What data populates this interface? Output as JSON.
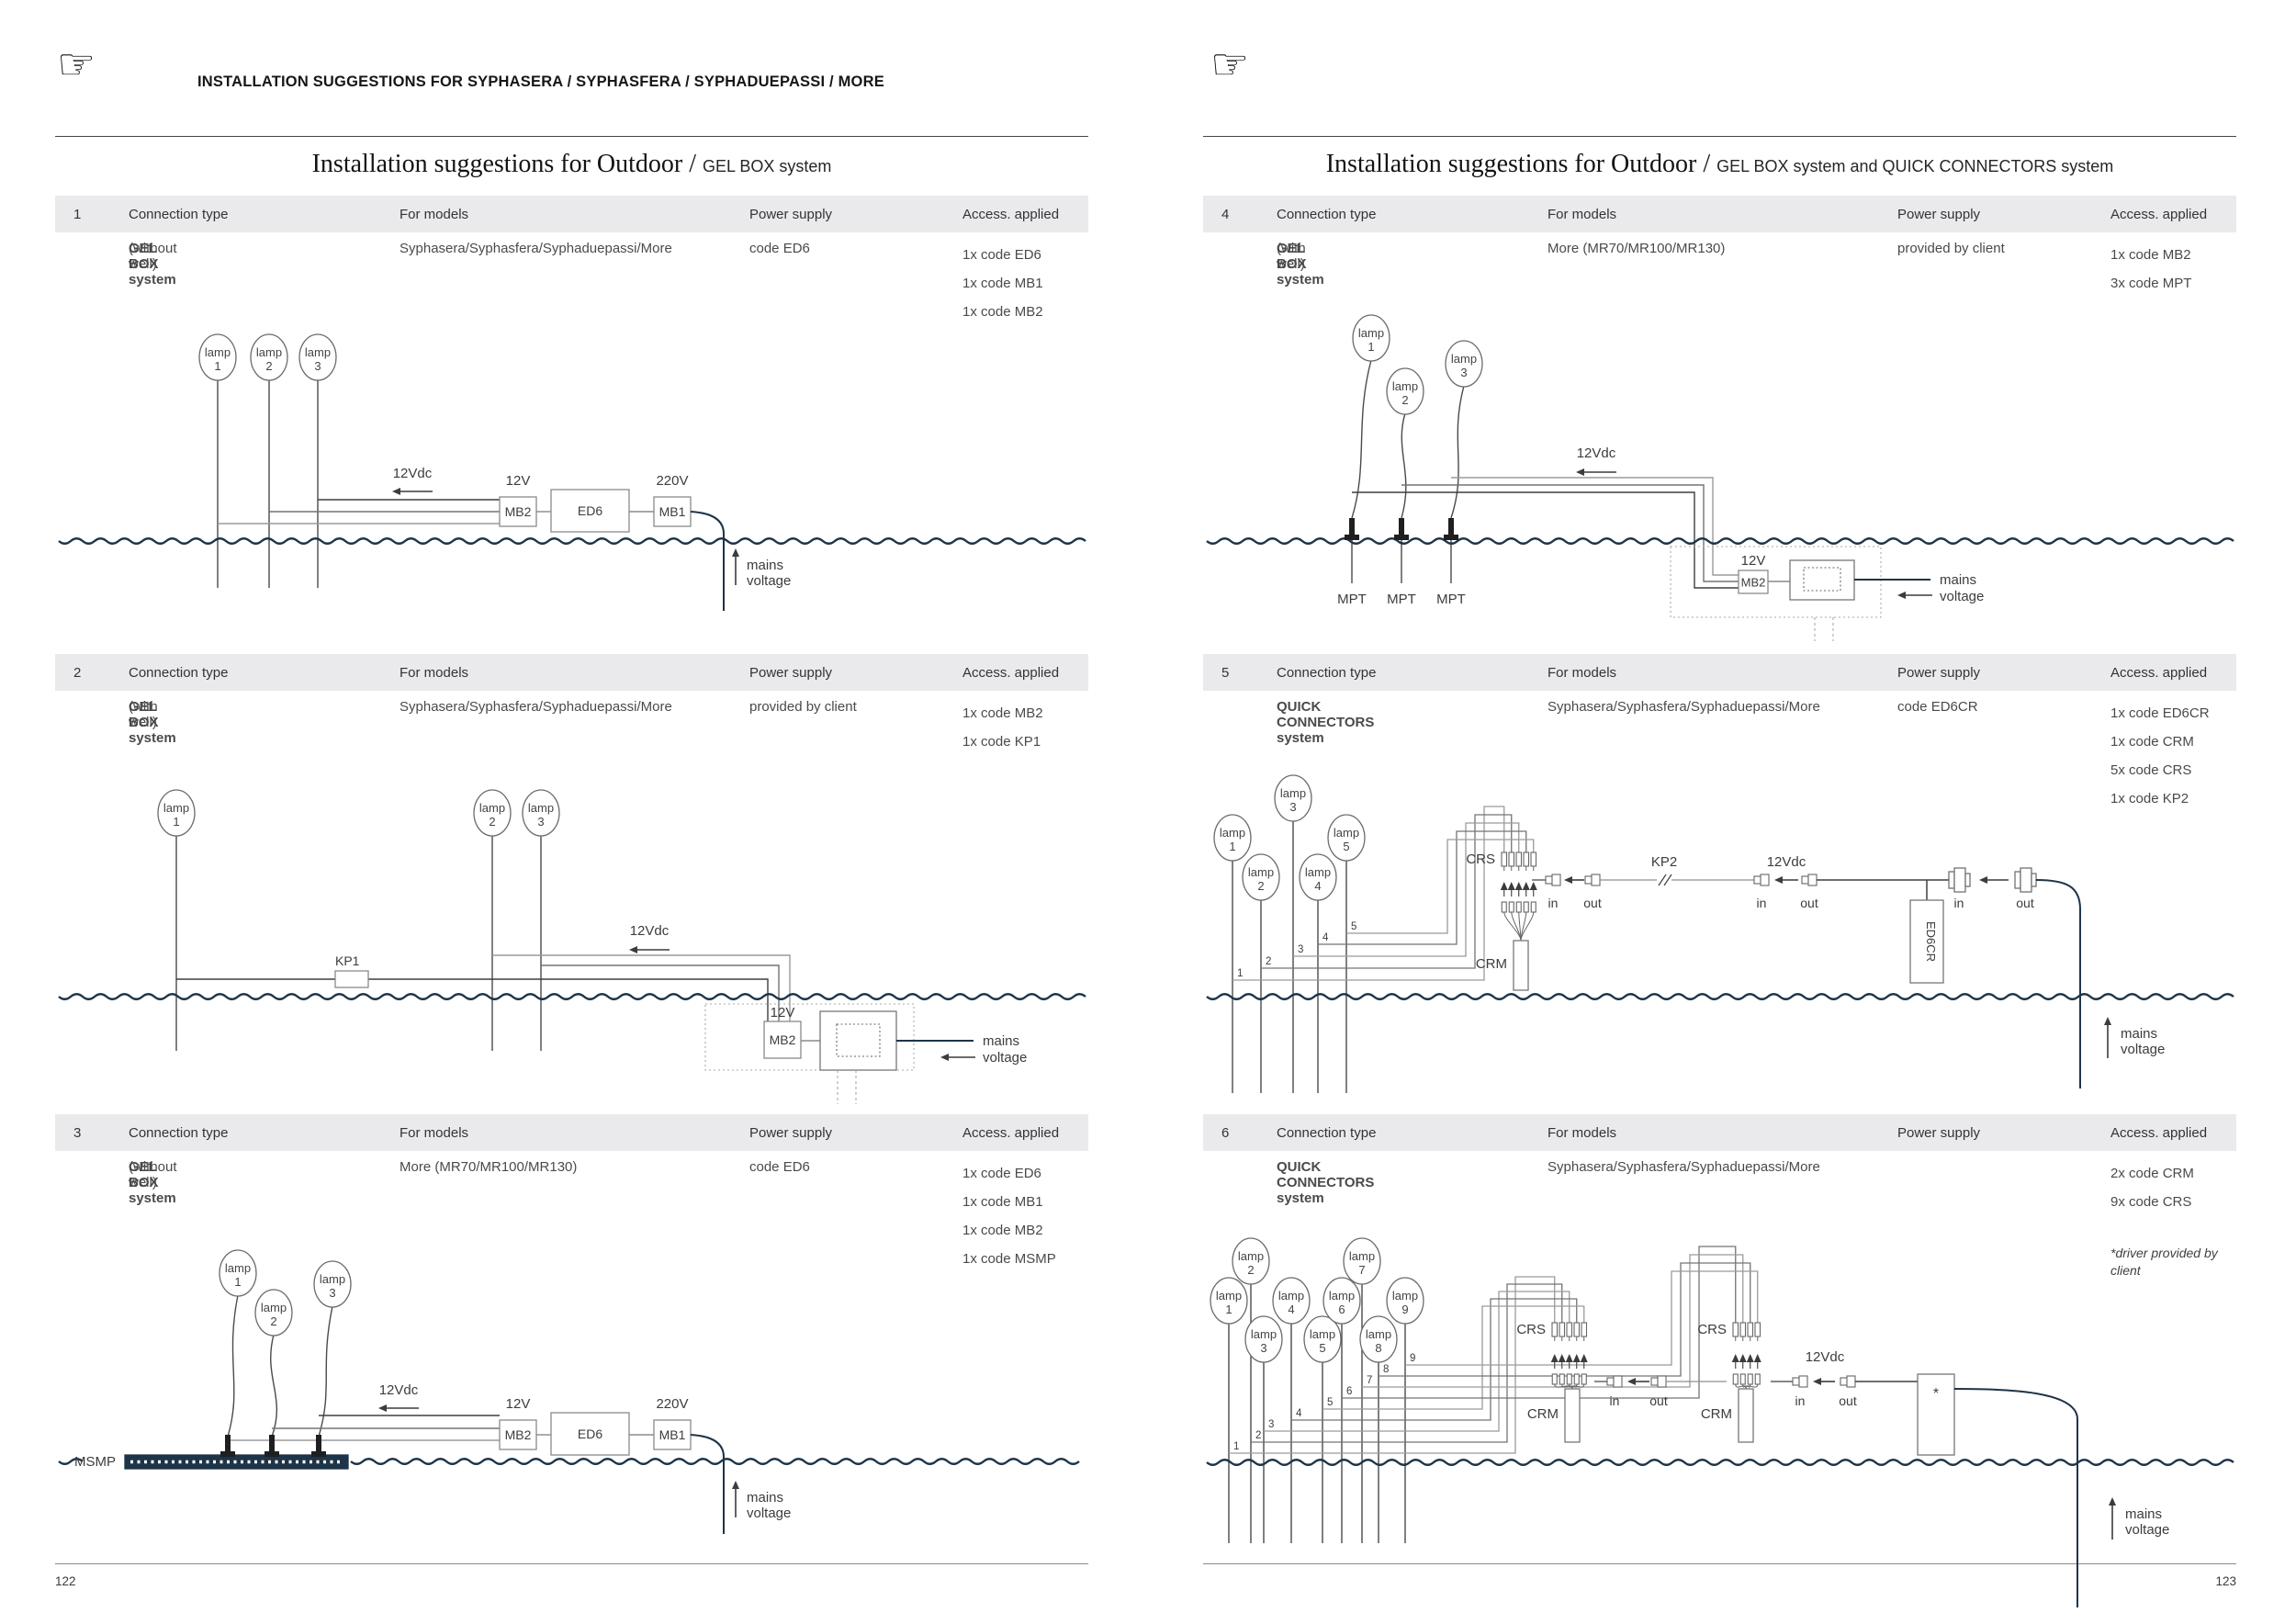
{
  "header": {
    "hand_glyph": "☞",
    "kicker": "INSTALLATION SUGGESTIONS FOR SYPHASERA / SYPHASFERA / SYPHADUEPASSI / MORE"
  },
  "pages": {
    "left": {
      "title_main": "Installation suggestions for Outdoor",
      "title_sep": " / ",
      "title_sub": "GEL BOX system",
      "page_number": "122"
    },
    "right": {
      "title_main": "Installation suggestions for Outdoor",
      "title_sep": " / ",
      "title_sub": "GEL BOX system and QUICK CONNECTORS system",
      "page_number": "123"
    }
  },
  "table_headers": {
    "connection": "Connection type",
    "models": "For models",
    "power": "Power supply",
    "access": "Access. applied"
  },
  "sections": [
    {
      "num": "1",
      "connection_name": "GEL BOX system",
      "connection_variant": "(without well)",
      "models": "Syphasera/Syphasfera/Syphaduepassi/More",
      "power": "code ED6",
      "access": [
        "1x code ED6",
        "1x code MB1",
        "1x code MB2"
      ]
    },
    {
      "num": "2",
      "connection_name": "GEL BOX system",
      "connection_variant": "(with well)",
      "models": "Syphasera/Syphasfera/Syphaduepassi/More",
      "power": "provided by client",
      "access": [
        "1x code MB2",
        "1x code KP1"
      ]
    },
    {
      "num": "3",
      "connection_name": "GEL BOX system",
      "connection_variant": "(without well)",
      "models": "More (MR70/MR100/MR130)",
      "power": "code ED6",
      "access": [
        "1x code ED6",
        "1x code MB1",
        "1x code MB2",
        "1x code MSMP"
      ]
    },
    {
      "num": "4",
      "connection_name": "GEL BOX system",
      "connection_variant": "(with well)",
      "models": "More (MR70/MR100/MR130)",
      "power": "provided by client",
      "access": [
        "1x code MB2",
        "3x code MPT"
      ]
    },
    {
      "num": "5",
      "connection_name": "QUICK CONNECTORS system",
      "connection_variant": "",
      "models": "Syphasera/Syphasfera/Syphaduepassi/More",
      "power": "code ED6CR",
      "access": [
        "1x code ED6CR",
        "1x code CRM",
        "5x code CRS",
        "1x code KP2"
      ]
    },
    {
      "num": "6",
      "connection_name": "QUICK CONNECTORS system",
      "connection_variant": "",
      "models": "Syphasera/Syphasfera/Syphaduepassi/More",
      "power": "",
      "access": [
        "2x code CRM",
        "9x code CRS"
      ],
      "note": "*driver provided by client"
    }
  ],
  "diagrams": {
    "lamp_word": "lamp",
    "labels": {
      "v12dc": "12Vdc",
      "v12": "12V",
      "v220": "220V",
      "mains_line1": "mains",
      "mains_line2": "voltage",
      "in": "in",
      "out": "out"
    },
    "boxes": {
      "mb1": "MB1",
      "mb2": "MB2",
      "ed6": "ED6",
      "ed6cr": "ED6CR",
      "crm": "CRM",
      "crs": "CRS",
      "kp1": "KP1",
      "kp2": "KP2",
      "mpt": "MPT",
      "msmp": "MSMP",
      "driver_star": "*"
    },
    "d1": {
      "lamps": [
        "1",
        "2",
        "3"
      ]
    },
    "d2": {
      "lamps": [
        "1",
        "2",
        "3"
      ]
    },
    "d3": {
      "lamps": [
        "1",
        "2",
        "3"
      ]
    },
    "d4": {
      "lamps": [
        "1",
        "2",
        "3"
      ]
    },
    "d5": {
      "lamps": [
        "1",
        "2",
        "3",
        "4",
        "5"
      ],
      "wire_numbers": [
        "1",
        "2",
        "3",
        "4",
        "5"
      ]
    },
    "d6": {
      "lamps": [
        "1",
        "2",
        "3",
        "4",
        "5",
        "6",
        "7",
        "8",
        "9"
      ],
      "wire_numbers": [
        "1",
        "2",
        "3",
        "4",
        "5",
        "6",
        "7",
        "8",
        "9"
      ]
    }
  },
  "colors": {
    "water_navy": "#1e3448",
    "cable_gray": "#9b9b9b",
    "cable_mid": "#737373",
    "cable_dark": "#3f3f3f",
    "table_header_bg": "#eaeaec"
  }
}
